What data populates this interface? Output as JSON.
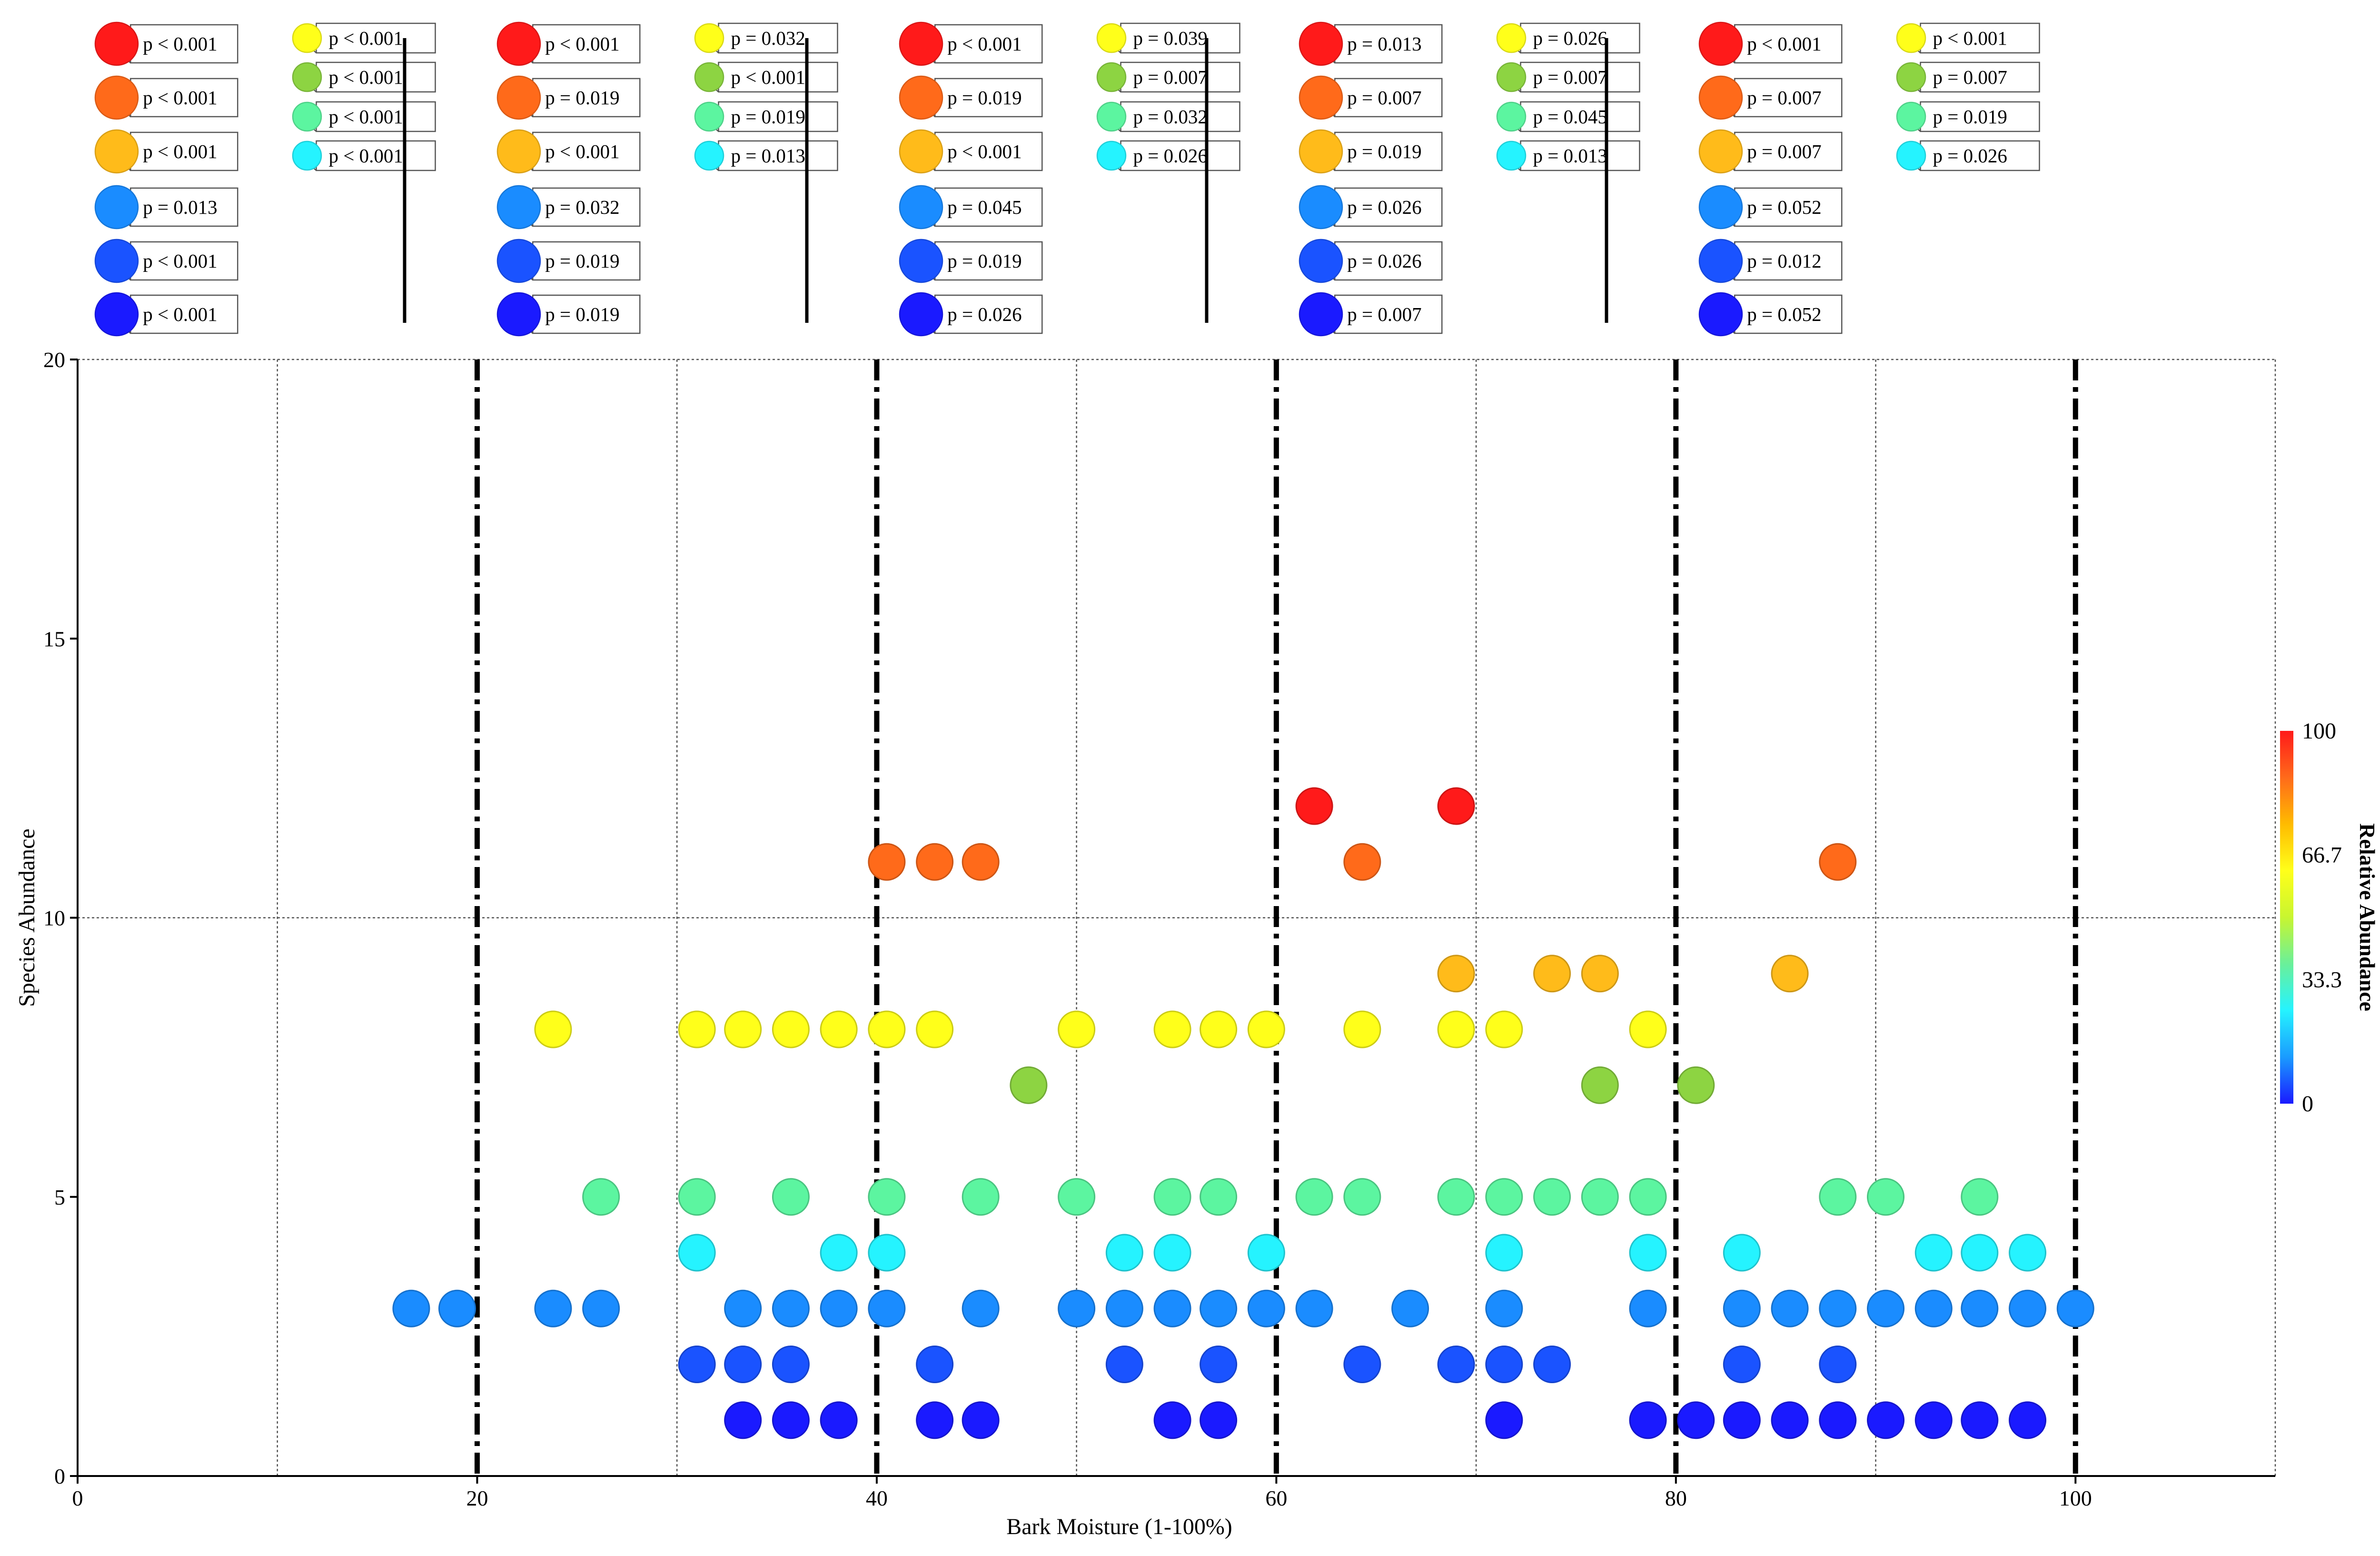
{
  "chart_data": {
    "type": "scatter",
    "title": "",
    "xlabel": "Bark Moisture (1-100%)",
    "ylabel": "Species Abundance",
    "xlim": [
      0,
      110
    ],
    "ylim": [
      0,
      20
    ],
    "x_ticks": [
      "0",
      "20",
      "40",
      "60",
      "80",
      "100"
    ],
    "y_ticks": [
      "0",
      "5",
      "10",
      "15",
      "20"
    ],
    "grid": true,
    "bin_boundaries": [
      20,
      40,
      60,
      80,
      100
    ],
    "colorbar": {
      "title": "Relative Abundance",
      "ticks": [
        "0",
        "33.3",
        "66.7",
        "100"
      ],
      "range": [
        0,
        100
      ],
      "colors": [
        "#1a1aff",
        "#1a9bff",
        "#25f3ff",
        "#6af09a",
        "#c8f530",
        "#ffff1a",
        "#ffbb00",
        "#ff6a1a",
        "#ff1a1a"
      ]
    },
    "series_colors": {
      "red": "#ff1a1a",
      "orange": "#ff6a1a",
      "amber": "#ffbb1a",
      "yellow": "#ffff1a",
      "lime": "#8dd442",
      "mint": "#5cf5a0",
      "cyan": "#25f3ff",
      "lightblue": "#1a8cff",
      "blue": "#1a53ff",
      "darkblue": "#1a1aff"
    },
    "points": [
      {
        "series": "red",
        "x": 61.9,
        "y": 12
      },
      {
        "series": "red",
        "x": 69.0,
        "y": 12
      },
      {
        "series": "orange",
        "x": 40.5,
        "y": 11
      },
      {
        "series": "orange",
        "x": 42.9,
        "y": 11
      },
      {
        "series": "orange",
        "x": 45.2,
        "y": 11
      },
      {
        "series": "orange",
        "x": 64.3,
        "y": 11
      },
      {
        "series": "orange",
        "x": 88.1,
        "y": 11
      },
      {
        "series": "amber",
        "x": 69.0,
        "y": 9
      },
      {
        "series": "amber",
        "x": 73.8,
        "y": 9
      },
      {
        "series": "amber",
        "x": 76.2,
        "y": 9
      },
      {
        "series": "amber",
        "x": 85.7,
        "y": 9
      },
      {
        "series": "yellow",
        "x": 23.8,
        "y": 8
      },
      {
        "series": "yellow",
        "x": 31.0,
        "y": 8
      },
      {
        "series": "yellow",
        "x": 33.3,
        "y": 8
      },
      {
        "series": "yellow",
        "x": 35.7,
        "y": 8
      },
      {
        "series": "yellow",
        "x": 38.1,
        "y": 8
      },
      {
        "series": "yellow",
        "x": 40.5,
        "y": 8
      },
      {
        "series": "yellow",
        "x": 42.9,
        "y": 8
      },
      {
        "series": "yellow",
        "x": 50.0,
        "y": 8
      },
      {
        "series": "yellow",
        "x": 54.8,
        "y": 8
      },
      {
        "series": "yellow",
        "x": 57.1,
        "y": 8
      },
      {
        "series": "yellow",
        "x": 59.5,
        "y": 8
      },
      {
        "series": "yellow",
        "x": 64.3,
        "y": 8
      },
      {
        "series": "yellow",
        "x": 69.0,
        "y": 8
      },
      {
        "series": "yellow",
        "x": 71.4,
        "y": 8
      },
      {
        "series": "yellow",
        "x": 78.6,
        "y": 8
      },
      {
        "series": "lime",
        "x": 47.6,
        "y": 7
      },
      {
        "series": "lime",
        "x": 76.2,
        "y": 7
      },
      {
        "series": "lime",
        "x": 81.0,
        "y": 7
      },
      {
        "series": "mint",
        "x": 26.2,
        "y": 5
      },
      {
        "series": "mint",
        "x": 31.0,
        "y": 5
      },
      {
        "series": "mint",
        "x": 35.7,
        "y": 5
      },
      {
        "series": "mint",
        "x": 40.5,
        "y": 5
      },
      {
        "series": "mint",
        "x": 45.2,
        "y": 5
      },
      {
        "series": "mint",
        "x": 50.0,
        "y": 5
      },
      {
        "series": "mint",
        "x": 54.8,
        "y": 5
      },
      {
        "series": "mint",
        "x": 57.1,
        "y": 5
      },
      {
        "series": "mint",
        "x": 61.9,
        "y": 5
      },
      {
        "series": "mint",
        "x": 64.3,
        "y": 5
      },
      {
        "series": "mint",
        "x": 69.0,
        "y": 5
      },
      {
        "series": "mint",
        "x": 71.4,
        "y": 5
      },
      {
        "series": "mint",
        "x": 73.8,
        "y": 5
      },
      {
        "series": "mint",
        "x": 76.2,
        "y": 5
      },
      {
        "series": "mint",
        "x": 78.6,
        "y": 5
      },
      {
        "series": "mint",
        "x": 88.1,
        "y": 5
      },
      {
        "series": "mint",
        "x": 90.5,
        "y": 5
      },
      {
        "series": "mint",
        "x": 95.2,
        "y": 5
      },
      {
        "series": "cyan",
        "x": 31.0,
        "y": 4
      },
      {
        "series": "cyan",
        "x": 38.1,
        "y": 4
      },
      {
        "series": "cyan",
        "x": 40.5,
        "y": 4
      },
      {
        "series": "cyan",
        "x": 52.4,
        "y": 4
      },
      {
        "series": "cyan",
        "x": 54.8,
        "y": 4
      },
      {
        "series": "cyan",
        "x": 59.5,
        "y": 4
      },
      {
        "series": "cyan",
        "x": 71.4,
        "y": 4
      },
      {
        "series": "cyan",
        "x": 78.6,
        "y": 4
      },
      {
        "series": "cyan",
        "x": 83.3,
        "y": 4
      },
      {
        "series": "cyan",
        "x": 92.9,
        "y": 4
      },
      {
        "series": "cyan",
        "x": 95.2,
        "y": 4
      },
      {
        "series": "cyan",
        "x": 97.6,
        "y": 4
      },
      {
        "series": "lightblue",
        "x": 16.7,
        "y": 3
      },
      {
        "series": "lightblue",
        "x": 19.0,
        "y": 3
      },
      {
        "series": "lightblue",
        "x": 23.8,
        "y": 3
      },
      {
        "series": "lightblue",
        "x": 26.2,
        "y": 3
      },
      {
        "series": "lightblue",
        "x": 33.3,
        "y": 3
      },
      {
        "series": "lightblue",
        "x": 35.7,
        "y": 3
      },
      {
        "series": "lightblue",
        "x": 38.1,
        "y": 3
      },
      {
        "series": "lightblue",
        "x": 40.5,
        "y": 3
      },
      {
        "series": "lightblue",
        "x": 45.2,
        "y": 3
      },
      {
        "series": "lightblue",
        "x": 50.0,
        "y": 3
      },
      {
        "series": "lightblue",
        "x": 52.4,
        "y": 3
      },
      {
        "series": "lightblue",
        "x": 54.8,
        "y": 3
      },
      {
        "series": "lightblue",
        "x": 57.1,
        "y": 3
      },
      {
        "series": "lightblue",
        "x": 59.5,
        "y": 3
      },
      {
        "series": "lightblue",
        "x": 61.9,
        "y": 3
      },
      {
        "series": "lightblue",
        "x": 66.7,
        "y": 3
      },
      {
        "series": "lightblue",
        "x": 71.4,
        "y": 3
      },
      {
        "series": "lightblue",
        "x": 78.6,
        "y": 3
      },
      {
        "series": "lightblue",
        "x": 83.3,
        "y": 3
      },
      {
        "series": "lightblue",
        "x": 85.7,
        "y": 3
      },
      {
        "series": "lightblue",
        "x": 88.1,
        "y": 3
      },
      {
        "series": "lightblue",
        "x": 90.5,
        "y": 3
      },
      {
        "series": "lightblue",
        "x": 92.9,
        "y": 3
      },
      {
        "series": "lightblue",
        "x": 95.2,
        "y": 3
      },
      {
        "series": "lightblue",
        "x": 97.6,
        "y": 3
      },
      {
        "series": "lightblue",
        "x": 100.0,
        "y": 3
      },
      {
        "series": "blue",
        "x": 31.0,
        "y": 2
      },
      {
        "series": "blue",
        "x": 33.3,
        "y": 2
      },
      {
        "series": "blue",
        "x": 35.7,
        "y": 2
      },
      {
        "series": "blue",
        "x": 42.9,
        "y": 2
      },
      {
        "series": "blue",
        "x": 52.4,
        "y": 2
      },
      {
        "series": "blue",
        "x": 57.1,
        "y": 2
      },
      {
        "series": "blue",
        "x": 64.3,
        "y": 2
      },
      {
        "series": "blue",
        "x": 69.0,
        "y": 2
      },
      {
        "series": "blue",
        "x": 71.4,
        "y": 2
      },
      {
        "series": "blue",
        "x": 73.8,
        "y": 2
      },
      {
        "series": "blue",
        "x": 83.3,
        "y": 2
      },
      {
        "series": "blue",
        "x": 88.1,
        "y": 2
      },
      {
        "series": "darkblue",
        "x": 33.3,
        "y": 1
      },
      {
        "series": "darkblue",
        "x": 35.7,
        "y": 1
      },
      {
        "series": "darkblue",
        "x": 38.1,
        "y": 1
      },
      {
        "series": "darkblue",
        "x": 42.9,
        "y": 1
      },
      {
        "series": "darkblue",
        "x": 45.2,
        "y": 1
      },
      {
        "series": "darkblue",
        "x": 54.8,
        "y": 1
      },
      {
        "series": "darkblue",
        "x": 57.1,
        "y": 1
      },
      {
        "series": "darkblue",
        "x": 71.4,
        "y": 1
      },
      {
        "series": "darkblue",
        "x": 78.6,
        "y": 1
      },
      {
        "series": "darkblue",
        "x": 81.0,
        "y": 1
      },
      {
        "series": "darkblue",
        "x": 83.3,
        "y": 1
      },
      {
        "series": "darkblue",
        "x": 85.7,
        "y": 1
      },
      {
        "series": "darkblue",
        "x": 88.1,
        "y": 1
      },
      {
        "series": "darkblue",
        "x": 90.5,
        "y": 1
      },
      {
        "series": "darkblue",
        "x": 92.9,
        "y": 1
      },
      {
        "series": "darkblue",
        "x": 95.2,
        "y": 1
      },
      {
        "series": "darkblue",
        "x": 97.6,
        "y": 1
      }
    ],
    "legend_groups": [
      {
        "main": [
          {
            "series": "red",
            "label": "p < 0.001"
          },
          {
            "series": "orange",
            "label": "p < 0.001"
          },
          {
            "series": "amber",
            "label": "p < 0.001"
          },
          {
            "series": "lightblue",
            "label": "p = 0.013"
          },
          {
            "series": "blue",
            "label": "p < 0.001"
          },
          {
            "series": "darkblue",
            "label": "p < 0.001"
          }
        ],
        "extra": [
          {
            "series": "yellow",
            "label": "p < 0.001"
          },
          {
            "series": "lime",
            "label": "p < 0.001"
          },
          {
            "series": "mint",
            "label": "p < 0.001"
          },
          {
            "series": "cyan",
            "label": "p < 0.001"
          }
        ]
      },
      {
        "main": [
          {
            "series": "red",
            "label": "p < 0.001"
          },
          {
            "series": "orange",
            "label": "p = 0.019"
          },
          {
            "series": "amber",
            "label": "p < 0.001"
          },
          {
            "series": "lightblue",
            "label": "p = 0.032"
          },
          {
            "series": "blue",
            "label": "p = 0.019"
          },
          {
            "series": "darkblue",
            "label": "p = 0.019"
          }
        ],
        "extra": [
          {
            "series": "yellow",
            "label": "p = 0.032"
          },
          {
            "series": "lime",
            "label": "p < 0.001"
          },
          {
            "series": "mint",
            "label": "p = 0.019"
          },
          {
            "series": "cyan",
            "label": "p = 0.013"
          }
        ]
      },
      {
        "main": [
          {
            "series": "red",
            "label": "p < 0.001"
          },
          {
            "series": "orange",
            "label": "p = 0.019"
          },
          {
            "series": "amber",
            "label": "p < 0.001"
          },
          {
            "series": "lightblue",
            "label": "p = 0.045"
          },
          {
            "series": "blue",
            "label": "p = 0.019"
          },
          {
            "series": "darkblue",
            "label": "p = 0.026"
          }
        ],
        "extra": [
          {
            "series": "yellow",
            "label": "p = 0.039"
          },
          {
            "series": "lime",
            "label": "p = 0.007"
          },
          {
            "series": "mint",
            "label": "p = 0.032"
          },
          {
            "series": "cyan",
            "label": "p = 0.026"
          }
        ]
      },
      {
        "main": [
          {
            "series": "red",
            "label": "p = 0.013"
          },
          {
            "series": "orange",
            "label": "p = 0.007"
          },
          {
            "series": "amber",
            "label": "p = 0.019"
          },
          {
            "series": "lightblue",
            "label": "p = 0.026"
          },
          {
            "series": "blue",
            "label": "p = 0.026"
          },
          {
            "series": "darkblue",
            "label": "p = 0.007"
          }
        ],
        "extra": [
          {
            "series": "yellow",
            "label": "p = 0.026"
          },
          {
            "series": "lime",
            "label": "p = 0.007"
          },
          {
            "series": "mint",
            "label": "p = 0.045"
          },
          {
            "series": "cyan",
            "label": "p = 0.013"
          }
        ]
      },
      {
        "main": [
          {
            "series": "red",
            "label": "p < 0.001"
          },
          {
            "series": "orange",
            "label": "p = 0.007"
          },
          {
            "series": "amber",
            "label": "p = 0.007"
          },
          {
            "series": "lightblue",
            "label": "p = 0.052"
          },
          {
            "series": "blue",
            "label": "p = 0.012"
          },
          {
            "series": "darkblue",
            "label": "p = 0.052"
          }
        ],
        "extra": [
          {
            "series": "yellow",
            "label": "p < 0.001"
          },
          {
            "series": "lime",
            "label": "p = 0.007"
          },
          {
            "series": "mint",
            "label": "p = 0.019"
          },
          {
            "series": "cyan",
            "label": "p = 0.026"
          }
        ]
      }
    ]
  }
}
